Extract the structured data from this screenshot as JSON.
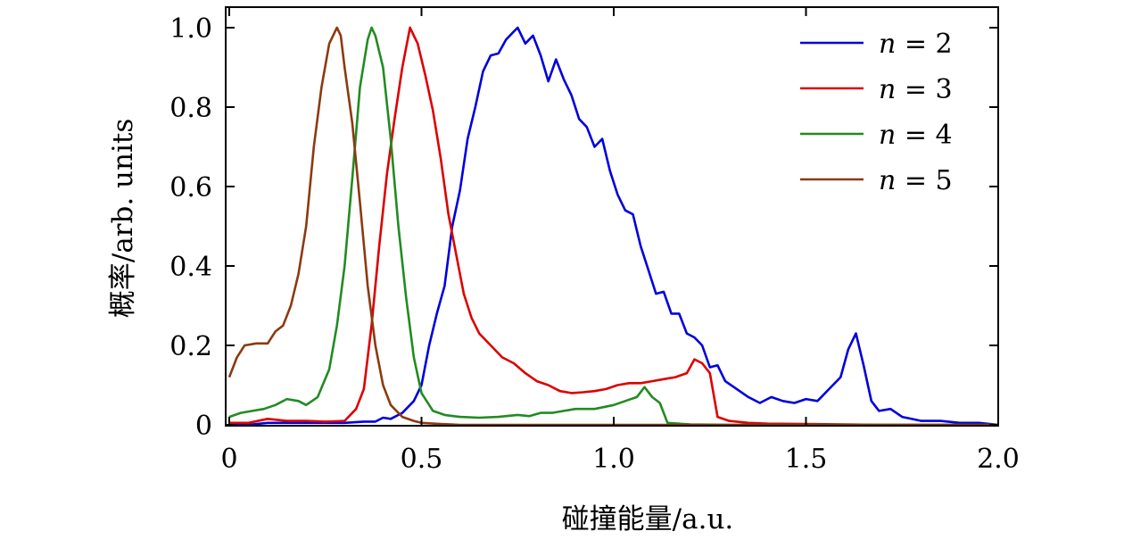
{
  "chart_data": {
    "type": "line",
    "xlabel": "碰撞能量/a.u.",
    "ylabel": "概率/arb. units",
    "xlim": [
      0,
      2.0
    ],
    "ylim": [
      0,
      1.05
    ],
    "xticks": [
      0,
      0.5,
      1.0,
      1.5,
      2.0
    ],
    "xtick_labels": [
      "0",
      "0.5",
      "1.0",
      "1.5",
      "2.0"
    ],
    "yticks": [
      0,
      0.2,
      0.4,
      0.6,
      0.8,
      1.0
    ],
    "ytick_labels": [
      "0",
      "0.2",
      "0.4",
      "0.6",
      "0.8",
      "1.0"
    ],
    "grid": false,
    "legend_position": "top-right",
    "series": [
      {
        "name": "n = 2",
        "legend_var": "n",
        "legend_eq": "= 2",
        "color": "#0000dd",
        "x": [
          0.0,
          0.05,
          0.1,
          0.15,
          0.2,
          0.25,
          0.3,
          0.35,
          0.38,
          0.4,
          0.42,
          0.45,
          0.48,
          0.5,
          0.52,
          0.54,
          0.56,
          0.58,
          0.6,
          0.62,
          0.64,
          0.66,
          0.68,
          0.7,
          0.72,
          0.74,
          0.75,
          0.77,
          0.79,
          0.81,
          0.83,
          0.85,
          0.87,
          0.89,
          0.91,
          0.93,
          0.95,
          0.97,
          0.99,
          1.01,
          1.03,
          1.05,
          1.07,
          1.09,
          1.11,
          1.13,
          1.15,
          1.17,
          1.19,
          1.21,
          1.23,
          1.25,
          1.27,
          1.29,
          1.32,
          1.35,
          1.38,
          1.41,
          1.44,
          1.47,
          1.5,
          1.53,
          1.56,
          1.59,
          1.61,
          1.63,
          1.65,
          1.67,
          1.69,
          1.72,
          1.75,
          1.8,
          1.85,
          1.9,
          1.95,
          2.0
        ],
        "values": [
          0.0,
          0.0,
          0.005,
          0.005,
          0.005,
          0.005,
          0.005,
          0.008,
          0.008,
          0.018,
          0.015,
          0.03,
          0.06,
          0.1,
          0.2,
          0.28,
          0.35,
          0.5,
          0.59,
          0.72,
          0.8,
          0.89,
          0.93,
          0.935,
          0.97,
          0.99,
          1.0,
          0.96,
          0.98,
          0.93,
          0.865,
          0.92,
          0.87,
          0.83,
          0.77,
          0.75,
          0.7,
          0.72,
          0.64,
          0.58,
          0.54,
          0.53,
          0.45,
          0.39,
          0.33,
          0.335,
          0.28,
          0.28,
          0.23,
          0.22,
          0.2,
          0.145,
          0.15,
          0.11,
          0.09,
          0.07,
          0.055,
          0.07,
          0.06,
          0.055,
          0.065,
          0.06,
          0.09,
          0.12,
          0.19,
          0.23,
          0.15,
          0.06,
          0.035,
          0.04,
          0.02,
          0.01,
          0.01,
          0.005,
          0.005,
          0.0
        ]
      },
      {
        "name": "n = 3",
        "legend_var": "n",
        "legend_eq": "= 3",
        "color": "#dd0000",
        "x": [
          0.0,
          0.05,
          0.1,
          0.15,
          0.2,
          0.25,
          0.3,
          0.33,
          0.35,
          0.37,
          0.39,
          0.41,
          0.43,
          0.45,
          0.47,
          0.49,
          0.51,
          0.53,
          0.55,
          0.57,
          0.59,
          0.61,
          0.63,
          0.65,
          0.68,
          0.71,
          0.74,
          0.77,
          0.8,
          0.83,
          0.86,
          0.89,
          0.92,
          0.95,
          0.98,
          1.01,
          1.04,
          1.07,
          1.1,
          1.13,
          1.16,
          1.19,
          1.21,
          1.23,
          1.25,
          1.27,
          1.3,
          1.35,
          1.4,
          1.5,
          1.6,
          1.7,
          2.0
        ],
        "values": [
          0.005,
          0.005,
          0.015,
          0.01,
          0.01,
          0.008,
          0.01,
          0.04,
          0.09,
          0.25,
          0.45,
          0.63,
          0.77,
          0.9,
          1.0,
          0.96,
          0.88,
          0.79,
          0.67,
          0.53,
          0.43,
          0.33,
          0.27,
          0.23,
          0.2,
          0.17,
          0.155,
          0.13,
          0.11,
          0.1,
          0.085,
          0.08,
          0.082,
          0.085,
          0.09,
          0.1,
          0.105,
          0.105,
          0.11,
          0.115,
          0.12,
          0.13,
          0.165,
          0.155,
          0.13,
          0.02,
          0.01,
          0.005,
          0.003,
          0.002,
          0.001,
          0.0,
          0.0
        ]
      },
      {
        "name": "n = 4",
        "legend_var": "n",
        "legend_eq": "= 4",
        "color": "#228b22",
        "x": [
          0.0,
          0.03,
          0.06,
          0.09,
          0.12,
          0.15,
          0.18,
          0.2,
          0.23,
          0.26,
          0.28,
          0.3,
          0.32,
          0.34,
          0.36,
          0.37,
          0.38,
          0.4,
          0.42,
          0.44,
          0.46,
          0.48,
          0.5,
          0.53,
          0.56,
          0.6,
          0.65,
          0.7,
          0.75,
          0.78,
          0.81,
          0.84,
          0.87,
          0.9,
          0.95,
          1.0,
          1.03,
          1.06,
          1.08,
          1.1,
          1.12,
          1.14,
          1.2,
          1.3,
          1.5,
          2.0
        ],
        "values": [
          0.02,
          0.03,
          0.035,
          0.04,
          0.05,
          0.065,
          0.06,
          0.05,
          0.07,
          0.14,
          0.25,
          0.4,
          0.62,
          0.85,
          0.97,
          1.0,
          0.98,
          0.9,
          0.72,
          0.5,
          0.32,
          0.17,
          0.08,
          0.035,
          0.025,
          0.02,
          0.018,
          0.02,
          0.025,
          0.022,
          0.03,
          0.03,
          0.035,
          0.04,
          0.04,
          0.05,
          0.06,
          0.07,
          0.095,
          0.07,
          0.055,
          0.005,
          0.001,
          0.0,
          0.0,
          0.0
        ]
      },
      {
        "name": "n = 5",
        "legend_var": "n",
        "legend_eq": "= 5",
        "color": "#8b3a0f",
        "x": [
          0.0,
          0.02,
          0.04,
          0.07,
          0.1,
          0.12,
          0.14,
          0.16,
          0.18,
          0.2,
          0.22,
          0.24,
          0.26,
          0.28,
          0.29,
          0.3,
          0.32,
          0.34,
          0.36,
          0.38,
          0.4,
          0.42,
          0.45,
          0.48,
          0.5,
          0.55,
          0.6,
          0.7,
          0.8,
          1.0,
          2.0
        ],
        "values": [
          0.12,
          0.17,
          0.2,
          0.205,
          0.205,
          0.235,
          0.25,
          0.3,
          0.38,
          0.5,
          0.7,
          0.85,
          0.96,
          1.0,
          0.98,
          0.9,
          0.76,
          0.56,
          0.35,
          0.2,
          0.1,
          0.05,
          0.02,
          0.01,
          0.005,
          0.002,
          0.0,
          0.0,
          0.0,
          0.0,
          0.0
        ]
      }
    ]
  }
}
